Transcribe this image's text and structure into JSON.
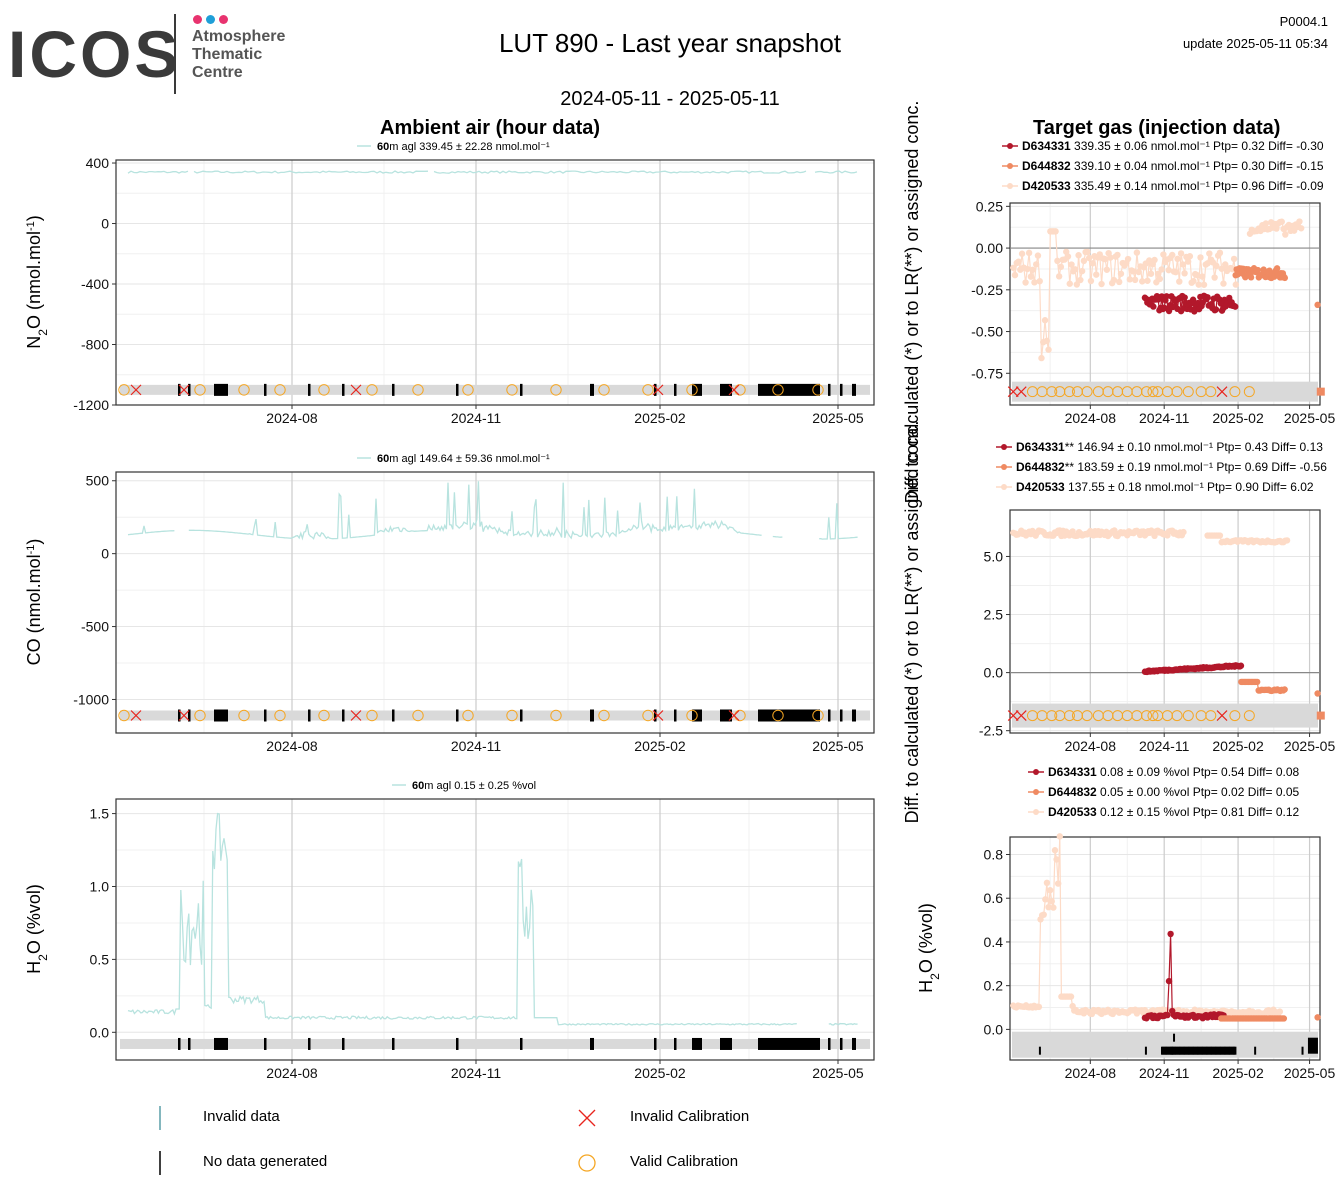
{
  "header": {
    "logo_text": "ICOS",
    "logo_sub": [
      "Atmosphere",
      "Thematic",
      "Centre"
    ],
    "logo_dot_colors": [
      "#e8336f",
      "#1f9fd8",
      "#e8336f"
    ],
    "title": "LUT 890 - Last year snapshot",
    "date_range": "2024-05-11 - 2025-05-11",
    "code": "P0004.1",
    "update": "update  2025-05-11 05:34",
    "left_heading": "Ambient air (hour data)",
    "right_heading": "Target gas (injection data)"
  },
  "legend": {
    "invalid_data": "Invalid data",
    "no_data": "No data generated",
    "invalid_calibration": "Invalid Calibration",
    "valid_calibration": "Valid Calibration"
  },
  "colors": {
    "ambient": "#b8e3df",
    "D634331": "#b2182b",
    "D644832": "#ef8a62",
    "D420533": "#fddbc7",
    "valid_cal": "#f5a623",
    "invalid_cal": "#e8251e",
    "status_band": "#d9d9d9"
  },
  "chart_data": [
    {
      "type": "line",
      "panel": "ambient-n2o",
      "ylabel": "N2O (nmol.mol-1)",
      "legend": {
        "height": "60",
        "text": "m agl 339.45 ± 22.28 nmol.mol⁻¹"
      },
      "ylim": [
        -1200,
        420
      ],
      "yticks": [
        400,
        0,
        -400,
        -800,
        -1200
      ],
      "xticks": [
        "2024-08",
        "2024-11",
        "2025-02",
        "2025-05"
      ],
      "series": [
        {
          "values_description_level": 339.45
        }
      ]
    },
    {
      "type": "line",
      "panel": "ambient-co",
      "ylabel": "CO (nmol.mol-1)",
      "legend": {
        "height": "60",
        "text": "m agl 149.64 ± 59.36 nmol.mol⁻¹"
      },
      "ylim": [
        -1230,
        560
      ],
      "yticks": [
        500,
        0,
        -500,
        -1000
      ],
      "xticks": [
        "2024-08",
        "2024-11",
        "2025-02",
        "2025-05"
      ]
    },
    {
      "type": "line",
      "panel": "ambient-h2o",
      "ylabel": "H2O (%vol)",
      "legend": {
        "height": "60",
        "text": "m agl 0.15 ± 0.25 %vol"
      },
      "ylim": [
        -0.19,
        1.6
      ],
      "yticks": [
        1.5,
        1.0,
        0.5,
        0.0
      ],
      "xticks": [
        "2024-08",
        "2024-11",
        "2025-02",
        "2025-05"
      ]
    },
    {
      "type": "scatter",
      "panel": "target-n2o",
      "ylabel": "Diff. to calculated (*) or to LR(**) or assigned conc.",
      "ylim": [
        -0.94,
        0.27
      ],
      "yticks": [
        0.25,
        0.0,
        -0.25,
        -0.5,
        -0.75
      ],
      "xticks": [
        "2024-08",
        "2024-11",
        "2025-02",
        "2025-05"
      ],
      "series": [
        {
          "name": "D634331",
          "text": "339.35 ± 0.06 nmol.mol⁻¹ Ptp= 0.32 Diff= -0.30"
        },
        {
          "name": "D644832",
          "text": "339.10 ± 0.04 nmol.mol⁻¹ Ptp= 0.30 Diff= -0.15"
        },
        {
          "name": "D420533",
          "text": "335.49 ± 0.14 nmol.mol⁻¹ Ptp= 0.96 Diff= -0.09"
        }
      ]
    },
    {
      "type": "scatter",
      "panel": "target-co",
      "ylabel": "Diff. to calculated (*) or to LR(**) or assigned conc.",
      "ylim": [
        -2.6,
        7.0
      ],
      "yticks": [
        5.0,
        2.5,
        0.0,
        -2.5
      ],
      "xticks": [
        "2024-08",
        "2024-11",
        "2025-02",
        "2025-05"
      ],
      "series": [
        {
          "name": "D634331",
          "mark": "**",
          "text": "146.94 ± 0.10 nmol.mol⁻¹ Ptp= 0.43 Diff= 0.13"
        },
        {
          "name": "D644832",
          "mark": "**",
          "text": "183.59 ± 0.19 nmol.mol⁻¹ Ptp= 0.69 Diff= -0.56"
        },
        {
          "name": "D420533",
          "mark": "",
          "text": "137.55 ± 0.18 nmol.mol⁻¹ Ptp= 0.90 Diff= 6.02"
        }
      ]
    },
    {
      "type": "scatter",
      "panel": "target-h2o",
      "ylabel": "H2O (%vol)",
      "ylim": [
        -0.14,
        0.88
      ],
      "yticks": [
        0.8,
        0.6,
        0.4,
        0.2,
        0.0
      ],
      "xticks": [
        "2024-08",
        "2024-11",
        "2025-02",
        "2025-05"
      ],
      "series": [
        {
          "name": "D634331",
          "text": "0.08 ± 0.09 %vol Ptp= 0.54 Diff= 0.08"
        },
        {
          "name": "D644832",
          "text": "0.05 ± 0.00 %vol Ptp= 0.02 Diff= 0.05"
        },
        {
          "name": "D420533",
          "text": "0.12 ± 0.15 %vol Ptp= 0.81 Diff= 0.12"
        }
      ]
    }
  ]
}
